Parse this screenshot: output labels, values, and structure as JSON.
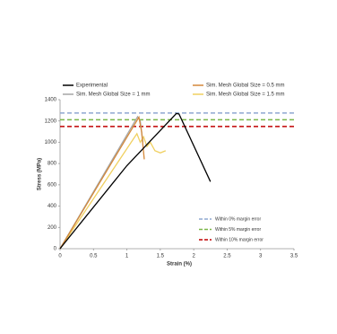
{
  "chart_data": {
    "type": "line",
    "x_label": "Strain (%)",
    "y_label": "Stress (MPa)",
    "xlim": [
      0,
      3.5
    ],
    "xticks": [
      0,
      0.5,
      1,
      1.5,
      2,
      2.5,
      3,
      3.5
    ],
    "ylim": [
      0,
      1400
    ],
    "yticks": [
      0,
      200,
      400,
      600,
      800,
      1000,
      1200,
      1400
    ],
    "series": [
      {
        "name": "Experimental",
        "color": "#000000",
        "x": [
          0,
          0.05,
          1.0,
          1.74,
          1.78,
          2.25
        ],
        "values": [
          0,
          40,
          780,
          1270,
          1265,
          630
        ]
      },
      {
        "name": "Sim. Mesh Global Size = 0.5 mm",
        "color": "#d4893a",
        "x": [
          0,
          1.18,
          1.22,
          1.26
        ],
        "values": [
          0,
          1235,
          1100,
          840
        ]
      },
      {
        "name": "Sim. Mesh Global Size = 1 mm",
        "color": "#a6a6a6",
        "x": [
          0,
          1.16,
          1.2,
          1.24
        ],
        "values": [
          0,
          1240,
          1200,
          1000
        ]
      },
      {
        "name": "Sim. Mesh Global Size = 1.5 mm",
        "color": "#f0d060",
        "x": [
          0,
          1.15,
          1.2,
          1.25,
          1.3,
          1.35,
          1.42,
          1.5,
          1.58
        ],
        "values": [
          0,
          1080,
          1000,
          1050,
          960,
          1000,
          920,
          900,
          920
        ]
      }
    ],
    "reference_lines": [
      {
        "name": "Within 0% margin error",
        "color": "#8fa8d0",
        "value": 1275
      },
      {
        "name": "Within 5% margin error",
        "color": "#7ab648",
        "value": 1211
      },
      {
        "name": "Within 10% margin error",
        "color": "#c00000",
        "value": 1148
      }
    ]
  }
}
